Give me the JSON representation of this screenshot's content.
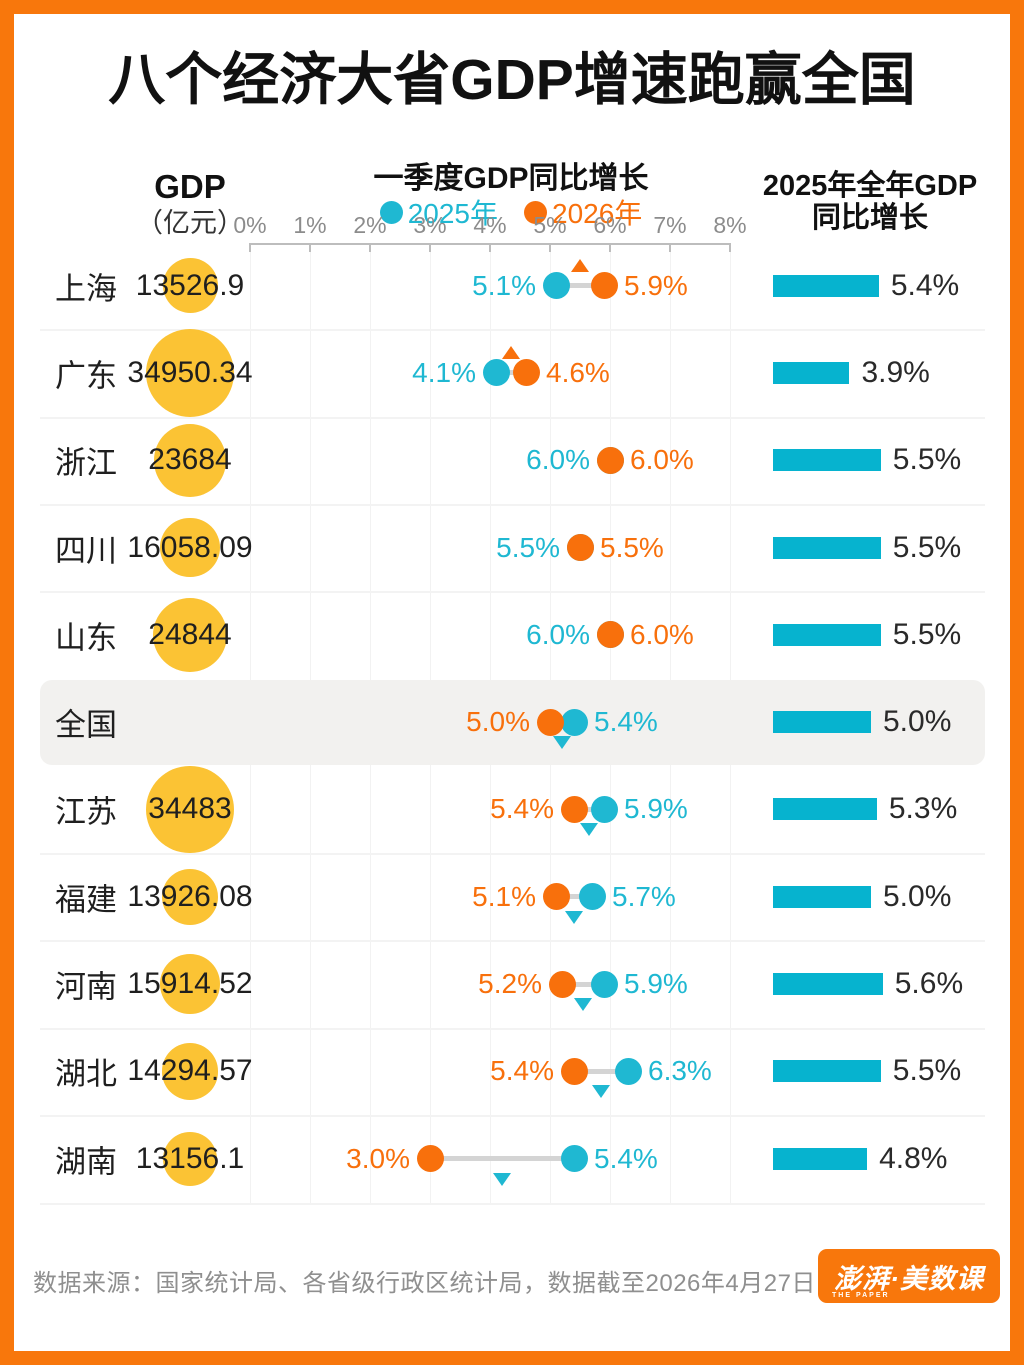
{
  "frame": {
    "border_color": "#F8770C"
  },
  "title": "八个经济大省GDP增速跑赢全国",
  "headers": {
    "gdp": "GDP",
    "gdp_unit": "（亿元）",
    "q1": "一季度GDP同比增长",
    "annual_line1": "2025年全年GDP",
    "annual_line2": "同比增长"
  },
  "legend": [
    {
      "label": "2025年",
      "color": "#1FB8D2"
    },
    {
      "label": "2026年",
      "color": "#F8700C"
    }
  ],
  "colors": {
    "teal": "#1FB8D2",
    "orange": "#F8700C",
    "bar_teal": "#06B3CF",
    "bubble_yellow": "#FBC334",
    "highlight_bg": "#F2F1EF",
    "grid": "#F2F2F2",
    "separator": "#F3F3F3",
    "axis": "#BDBDBD",
    "axis_label": "#8C8C8C",
    "connector": "#D4D4D4",
    "text_dark": "#1F1F1F",
    "bar_label": "#2A2A2A"
  },
  "axis": {
    "tick_labels": [
      "0%",
      "1%",
      "2%",
      "3%",
      "4%",
      "5%",
      "6%",
      "7%",
      "8%"
    ],
    "min_pct": 0,
    "max_pct": 8
  },
  "chart_data": {
    "type": "dumbbell+bar",
    "title": "八个经济大省GDP增速跑赢全国",
    "dumbbell_axis": {
      "label": "一季度GDP同比增长",
      "range_pct": [
        0,
        8
      ],
      "ticks_pct": [
        0,
        1,
        2,
        3,
        4,
        5,
        6,
        7,
        8
      ]
    },
    "series": [
      {
        "name": "2025年",
        "color": "#1FB8D2",
        "field": "q1_2025_pct"
      },
      {
        "name": "2026年",
        "color": "#F8700C",
        "field": "q1_2026_pct"
      }
    ],
    "bar_series": {
      "name": "2025年全年GDP同比增长",
      "color": "#06B3CF",
      "field": "annual_2025_pct"
    },
    "bubble_series": {
      "name": "GDP（亿元）",
      "field": "gdp_yi_yuan"
    },
    "rows": [
      {
        "region": "上海",
        "gdp_yi_yuan": 13526.9,
        "gdp_label": "13526.9",
        "q1_2025_pct": 5.1,
        "q1_2026_pct": 5.9,
        "annual_2025_pct": 5.4,
        "highlight": false
      },
      {
        "region": "广东",
        "gdp_yi_yuan": 34950.34,
        "gdp_label": "34950.34",
        "q1_2025_pct": 4.1,
        "q1_2026_pct": 4.6,
        "annual_2025_pct": 3.9,
        "highlight": false
      },
      {
        "region": "浙江",
        "gdp_yi_yuan": 23684,
        "gdp_label": "23684",
        "q1_2025_pct": 6.0,
        "q1_2026_pct": 6.0,
        "annual_2025_pct": 5.5,
        "highlight": false
      },
      {
        "region": "四川",
        "gdp_yi_yuan": 16058.09,
        "gdp_label": "16058.09",
        "q1_2025_pct": 5.5,
        "q1_2026_pct": 5.5,
        "annual_2025_pct": 5.5,
        "highlight": false
      },
      {
        "region": "山东",
        "gdp_yi_yuan": 24844,
        "gdp_label": "24844",
        "q1_2025_pct": 6.0,
        "q1_2026_pct": 6.0,
        "annual_2025_pct": 5.5,
        "highlight": false
      },
      {
        "region": "全国",
        "gdp_yi_yuan": null,
        "gdp_label": "",
        "q1_2025_pct": 5.4,
        "q1_2026_pct": 5.0,
        "annual_2025_pct": 5.0,
        "highlight": true
      },
      {
        "region": "江苏",
        "gdp_yi_yuan": 34483,
        "gdp_label": "34483",
        "q1_2025_pct": 5.9,
        "q1_2026_pct": 5.4,
        "annual_2025_pct": 5.3,
        "highlight": false
      },
      {
        "region": "福建",
        "gdp_yi_yuan": 13926.08,
        "gdp_label": "13926.08",
        "q1_2025_pct": 5.7,
        "q1_2026_pct": 5.1,
        "annual_2025_pct": 5.0,
        "highlight": false
      },
      {
        "region": "河南",
        "gdp_yi_yuan": 15914.52,
        "gdp_label": "15914.52",
        "q1_2025_pct": 5.9,
        "q1_2026_pct": 5.2,
        "annual_2025_pct": 5.6,
        "highlight": false
      },
      {
        "region": "湖北",
        "gdp_yi_yuan": 14294.57,
        "gdp_label": "14294.57",
        "q1_2025_pct": 6.3,
        "q1_2026_pct": 5.4,
        "annual_2025_pct": 5.5,
        "highlight": false
      },
      {
        "region": "湖南",
        "gdp_yi_yuan": 13156.1,
        "gdp_label": "13156.1",
        "q1_2025_pct": 5.4,
        "q1_2026_pct": 3.0,
        "annual_2025_pct": 4.8,
        "highlight": false
      }
    ]
  },
  "footer": {
    "source": "数据来源：国家统计局、各省级行政区统计局，数据截至2026年4月27日",
    "logo_text": "澎湃·美数课",
    "logo_subtext": "THE PAPER"
  }
}
